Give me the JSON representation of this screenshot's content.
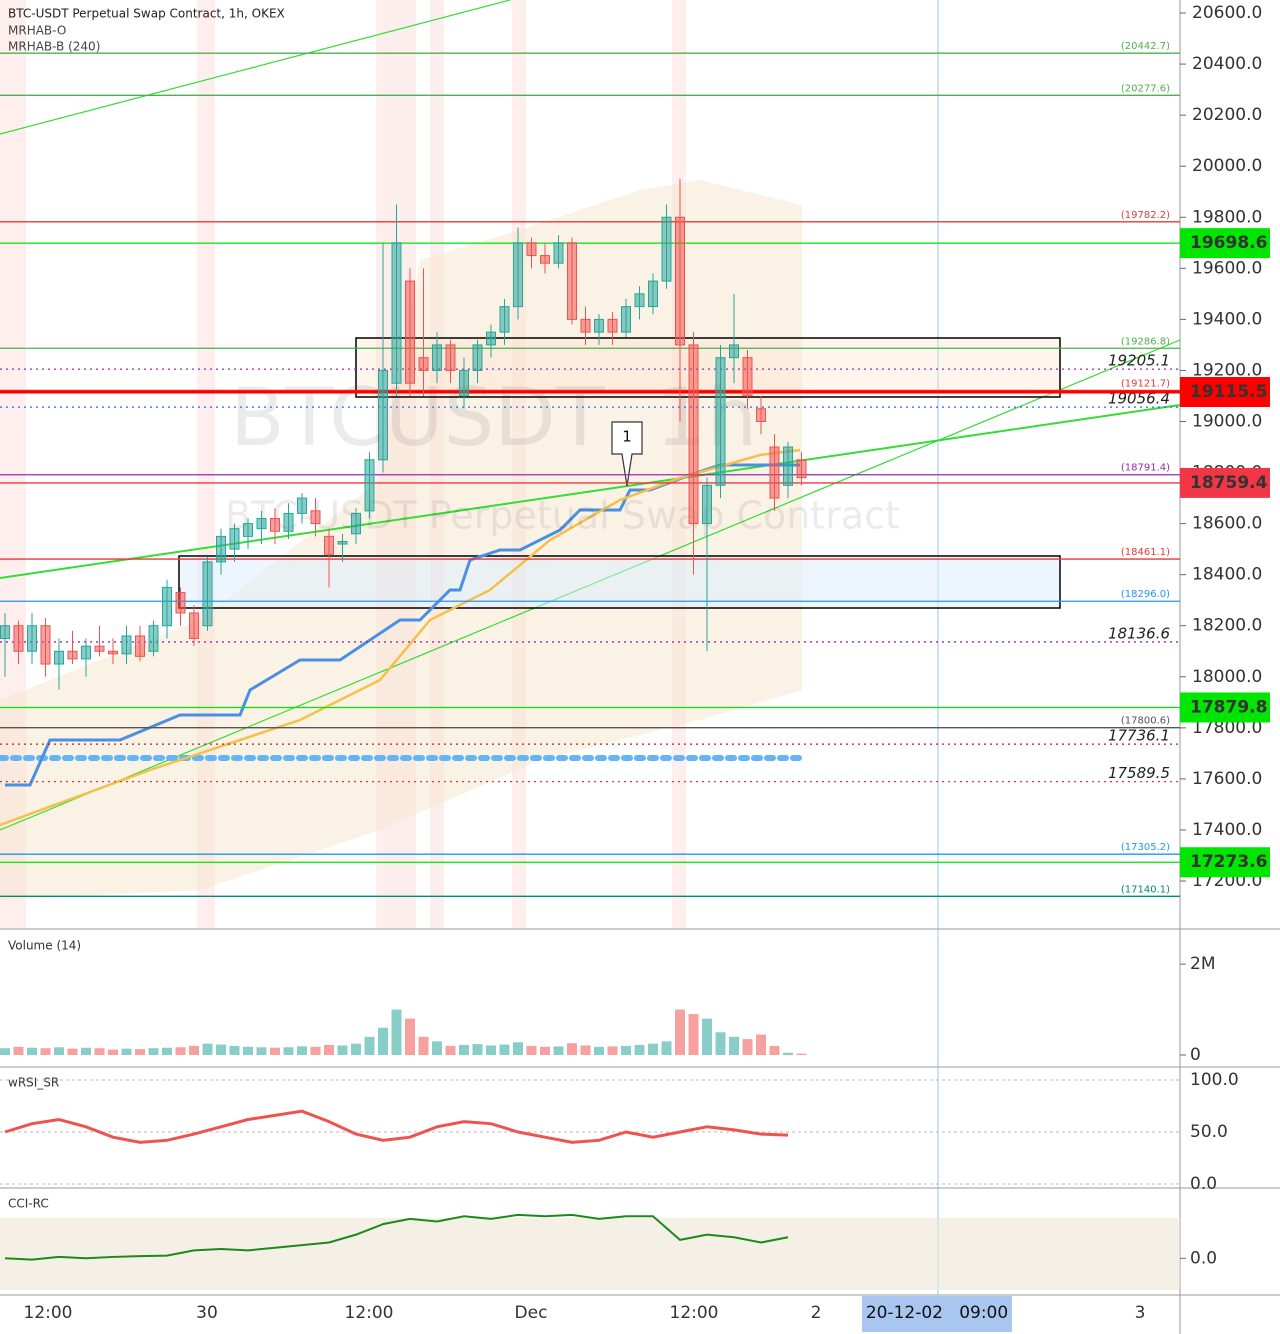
{
  "chart_data": {
    "type": "candlestick",
    "title": "BTC-USDT Perpetual Swap Contract, 1h, OKEX",
    "indicators": [
      "MRHAB-O",
      "MRHAB-B (240)"
    ],
    "watermark": [
      "BTCUSDT, 1h",
      "BTC-USDT Perpetual Swap Contract"
    ],
    "annotation": "1",
    "up_color": "#26a69a",
    "down_color": "#ef5350",
    "ylim": [
      17016,
      20651
    ],
    "yticks": [
      {
        "value": 17200,
        "label": "17200.0"
      },
      {
        "value": 17400,
        "label": "17400.0"
      },
      {
        "value": 17600,
        "label": "17600.0"
      },
      {
        "value": 17800,
        "label": "17800.0"
      },
      {
        "value": 18000,
        "label": "18000.0"
      },
      {
        "value": 18200,
        "label": "18200.0"
      },
      {
        "value": 18400,
        "label": "18400.0"
      },
      {
        "value": 18600,
        "label": "18600.0"
      },
      {
        "value": 18800,
        "label": "18800.0"
      },
      {
        "value": 19000,
        "label": "19000.0"
      },
      {
        "value": 19200,
        "label": "19200.0"
      },
      {
        "value": 19400,
        "label": "19400.0"
      },
      {
        "value": 19600,
        "label": "19600.0"
      },
      {
        "value": 19800,
        "label": "19800.0"
      },
      {
        "value": 20000,
        "label": "20000.0"
      },
      {
        "value": 20200,
        "label": "20200.0"
      },
      {
        "value": 20400,
        "label": "20400.0"
      },
      {
        "value": 20600,
        "label": "20600.0"
      }
    ],
    "candles": [
      [
        18150,
        18250,
        18000,
        18200
      ],
      [
        18200,
        18220,
        18050,
        18100
      ],
      [
        18100,
        18250,
        18050,
        18200
      ],
      [
        18200,
        18230,
        18000,
        18050
      ],
      [
        18050,
        18150,
        17950,
        18100
      ],
      [
        18100,
        18180,
        18050,
        18070
      ],
      [
        18070,
        18150,
        18000,
        18120
      ],
      [
        18120,
        18200,
        18080,
        18100
      ],
      [
        18100,
        18150,
        18050,
        18090
      ],
      [
        18090,
        18200,
        18050,
        18160
      ],
      [
        18160,
        18200,
        18060,
        18080
      ],
      [
        18100,
        18220,
        18080,
        18200
      ],
      [
        18200,
        18380,
        18150,
        18350
      ],
      [
        18330,
        18350,
        18200,
        18250
      ],
      [
        18250,
        18280,
        18120,
        18150
      ],
      [
        18200,
        18470,
        18180,
        18450
      ],
      [
        18450,
        18580,
        18400,
        18550
      ],
      [
        18500,
        18600,
        18450,
        18580
      ],
      [
        18550,
        18620,
        18500,
        18600
      ],
      [
        18580,
        18650,
        18520,
        18620
      ],
      [
        18620,
        18660,
        18520,
        18570
      ],
      [
        18570,
        18680,
        18540,
        18640
      ],
      [
        18640,
        18720,
        18600,
        18700
      ],
      [
        18650,
        18700,
        18550,
        18600
      ],
      [
        18550,
        18580,
        18350,
        18480
      ],
      [
        18520,
        18560,
        18450,
        18530
      ],
      [
        18560,
        18660,
        18520,
        18640
      ],
      [
        18650,
        18880,
        18620,
        18850
      ],
      [
        18850,
        19700,
        18800,
        19200
      ],
      [
        19150,
        19850,
        19100,
        19700
      ],
      [
        19550,
        19600,
        19100,
        19150
      ],
      [
        19250,
        19600,
        19100,
        19200
      ],
      [
        19200,
        19350,
        19150,
        19300
      ],
      [
        19300,
        19320,
        19150,
        19200
      ],
      [
        19100,
        19250,
        19050,
        19200
      ],
      [
        19200,
        19320,
        19150,
        19300
      ],
      [
        19300,
        19380,
        19250,
        19350
      ],
      [
        19350,
        19480,
        19300,
        19450
      ],
      [
        19450,
        19760,
        19400,
        19700
      ],
      [
        19700,
        19720,
        19600,
        19650
      ],
      [
        19650,
        19700,
        19580,
        19620
      ],
      [
        19620,
        19730,
        19600,
        19700
      ],
      [
        19700,
        19720,
        19380,
        19400
      ],
      [
        19400,
        19450,
        19300,
        19350
      ],
      [
        19350,
        19420,
        19300,
        19400
      ],
      [
        19400,
        19430,
        19300,
        19350
      ],
      [
        19350,
        19480,
        19330,
        19450
      ],
      [
        19450,
        19530,
        19400,
        19500
      ],
      [
        19450,
        19580,
        19420,
        19550
      ],
      [
        19550,
        19850,
        19520,
        19800
      ],
      [
        19800,
        19950,
        19000,
        19300
      ],
      [
        19300,
        19350,
        18400,
        18600
      ],
      [
        18600,
        18780,
        18100,
        18750
      ],
      [
        18750,
        19300,
        18700,
        19250
      ],
      [
        19250,
        19500,
        19150,
        19300
      ],
      [
        19250,
        19280,
        19050,
        19100
      ],
      [
        19050,
        19100,
        18950,
        19000
      ],
      [
        18900,
        18950,
        18650,
        18700
      ],
      [
        18750,
        18920,
        18700,
        18900
      ],
      [
        18850,
        18880,
        18750,
        18780
      ]
    ],
    "levels": [
      {
        "value": 20442.7,
        "label": "(20442.7)",
        "color": "#4caf50",
        "style": "bracket"
      },
      {
        "value": 20277.6,
        "label": "(20277.6)",
        "color": "#4caf50",
        "style": "bracket"
      },
      {
        "value": 19782.2,
        "label": "(19782.2)",
        "color": "#e53935",
        "style": "bracket"
      },
      {
        "value": 19286.8,
        "label": "(19286.8)",
        "color": "#4caf50",
        "style": "bracket"
      },
      {
        "value": 19205.1,
        "label": "19205.1",
        "color": "#9c27b0",
        "style": "dotted"
      },
      {
        "value": 19121.7,
        "label": "(19121.7)",
        "color": "#e53935",
        "style": "bracket"
      },
      {
        "value": 19056.4,
        "label": "19056.4",
        "color": "#2962ff",
        "style": "dotted"
      },
      {
        "value": 18791.4,
        "label": "(18791.4)",
        "color": "#9c27b0",
        "style": "bracket"
      },
      {
        "value": 18461.1,
        "label": "(18461.1)",
        "color": "#e53935",
        "style": "bracket"
      },
      {
        "value": 18296,
        "label": "(18296.0)",
        "color": "#2196f3",
        "style": "bracket"
      },
      {
        "value": 18136.6,
        "label": "18136.6",
        "color": "#9c27b0",
        "style": "dotted"
      },
      {
        "value": 17800.6,
        "label": "(17800.6)",
        "color": "#555555",
        "style": "bracket"
      },
      {
        "value": 17736.1,
        "label": "17736.1",
        "color": "#b71c1c",
        "style": "dotted"
      },
      {
        "value": 17589.5,
        "label": "17589.5",
        "color": "#e53935",
        "style": "dotted"
      },
      {
        "value": 17305.2,
        "label": "(17305.2)",
        "color": "#2196f3",
        "style": "bracket"
      },
      {
        "value": 17140.1,
        "label": "(17140.1)",
        "color": "#00897b",
        "style": "bracket"
      }
    ],
    "price_tags": [
      {
        "price": 19698.6,
        "color": "#00e600"
      },
      {
        "price": 19115.5,
        "color": "#ff0000"
      },
      {
        "price": 18759.4,
        "color": "#f23645"
      },
      {
        "price": 17879.8,
        "color": "#00e600"
      },
      {
        "price": 17273.6,
        "color": "#00e600"
      }
    ],
    "time_labels": [
      "12:00",
      "30",
      "12:00",
      "Dec",
      "12:00",
      "2",
      "3"
    ],
    "crosshair_time": "20-12-02   09:00",
    "volume": {
      "title": "Volume (14)",
      "ylim": [
        0,
        2750000
      ],
      "yticks": [
        {
          "value": 2000000,
          "label": "2M"
        },
        0
      ],
      "values": [
        150000,
        180000,
        160000,
        150000,
        170000,
        140000,
        160000,
        150000,
        120000,
        140000,
        130000,
        150000,
        160000,
        170000,
        200000,
        250000,
        230000,
        200000,
        180000,
        170000,
        160000,
        170000,
        190000,
        180000,
        220000,
        210000,
        250000,
        400000,
        600000,
        1000000,
        800000,
        400000,
        300000,
        200000,
        220000,
        240000,
        210000,
        230000,
        280000,
        200000,
        180000,
        190000,
        260000,
        210000,
        180000,
        190000,
        200000,
        220000,
        250000,
        300000,
        1000000,
        900000,
        800000,
        500000,
        400000,
        350000,
        450000,
        200000,
        50000,
        30000
      ]
    },
    "rsi": {
      "title": "wRSI_SR",
      "ylim": [
        0,
        100
      ],
      "yticks": [
        {
          "value": 100,
          "label": "100.0"
        },
        {
          "value": 50,
          "label": "50.0"
        },
        {
          "value": 0,
          "label": "0.0"
        }
      ],
      "values": [
        50,
        58,
        62,
        55,
        45,
        40,
        42,
        48,
        55,
        62,
        66,
        70,
        60,
        48,
        42,
        45,
        55,
        60,
        58,
        50,
        45,
        40,
        42,
        50,
        45,
        50,
        55,
        52,
        48,
        47
      ]
    },
    "cci": {
      "title": "CCI-RC",
      "ylim": [
        -140,
        260
      ],
      "yticks": [
        {
          "value": 0,
          "label": "0.0"
        }
      ],
      "values": [
        0,
        -5,
        5,
        0,
        5,
        8,
        10,
        30,
        35,
        30,
        40,
        50,
        60,
        90,
        130,
        150,
        140,
        160,
        150,
        165,
        160,
        165,
        150,
        160,
        160,
        70,
        90,
        80,
        60,
        80
      ]
    }
  }
}
